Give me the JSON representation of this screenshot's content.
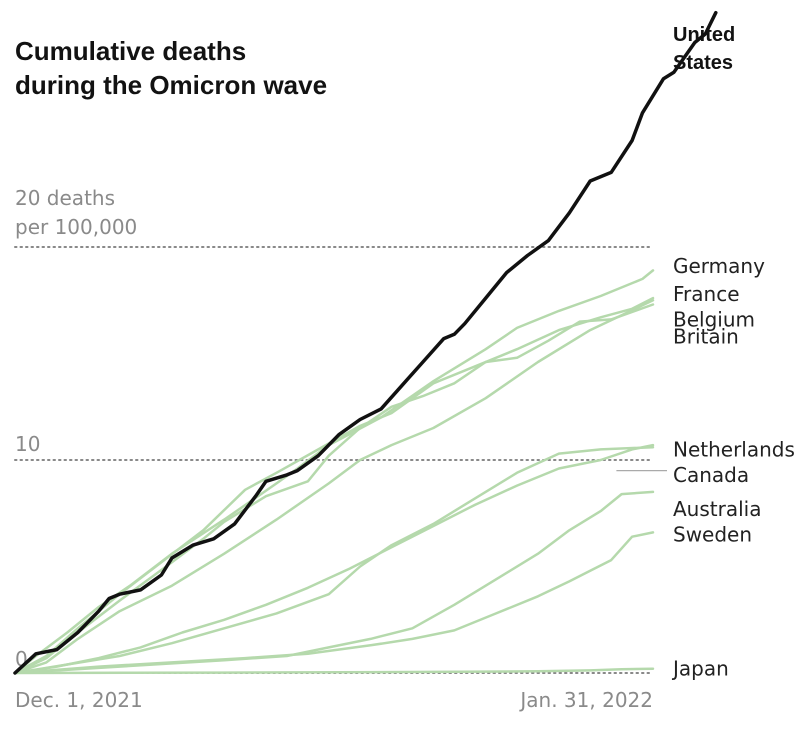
{
  "chart_data": {
    "type": "line",
    "title_lines": [
      "Cumulative deaths",
      "during the Omicron wave"
    ],
    "y_unit_lines": [
      "20 deaths",
      "per 100,000"
    ],
    "x_labels": [
      "Dec. 1, 2021",
      "Jan. 31, 2022"
    ],
    "x_range": [
      "2021-12-01",
      "2022-01-31"
    ],
    "y_ticks": [
      {
        "value": 0,
        "label": "0"
      },
      {
        "value": 10,
        "label": "10"
      },
      {
        "value": 20,
        "label": "20 deaths"
      }
    ],
    "ylim": [
      0,
      31
    ],
    "grid": "dotted horizontal at 0, 10, 20",
    "colors": {
      "highlight": "#111111",
      "other": "#b5d9ac",
      "guide": "#aaaaaa",
      "grid": "#888888"
    },
    "series": [
      {
        "name": "Germany",
        "label_lines": [
          "Germany"
        ],
        "label_value": 19.1,
        "points": [
          [
            0,
            0
          ],
          [
            2,
            0.8
          ],
          [
            5,
            1.9
          ],
          [
            8,
            3.1
          ],
          [
            11,
            4.1
          ],
          [
            15,
            5.6
          ],
          [
            20,
            7.2
          ],
          [
            25,
            8.9
          ],
          [
            27,
            9.6
          ],
          [
            30,
            10.7
          ],
          [
            35,
            12.0
          ],
          [
            40,
            13.7
          ],
          [
            45,
            15.2
          ],
          [
            48,
            16.2
          ],
          [
            52,
            17.0
          ],
          [
            56,
            17.7
          ],
          [
            60,
            18.5
          ],
          [
            61,
            18.9
          ]
        ]
      },
      {
        "name": "France",
        "label_lines": [
          "France"
        ],
        "label_value": 17.8,
        "points": [
          [
            0,
            0
          ],
          [
            3,
            0.5
          ],
          [
            6,
            1.6
          ],
          [
            10,
            2.9
          ],
          [
            15,
            4.1
          ],
          [
            20,
            5.6
          ],
          [
            25,
            7.2
          ],
          [
            30,
            8.9
          ],
          [
            33,
            10.0
          ],
          [
            36,
            10.7
          ],
          [
            40,
            11.5
          ],
          [
            45,
            12.9
          ],
          [
            50,
            14.6
          ],
          [
            55,
            16.1
          ],
          [
            58,
            16.8
          ],
          [
            61,
            17.5
          ]
        ]
      },
      {
        "name": "Belgium",
        "label_lines": [
          "Belgium"
        ],
        "label_value": 16.6,
        "points": [
          [
            0,
            0
          ],
          [
            3,
            0.7
          ],
          [
            6,
            1.9
          ],
          [
            10,
            3.4
          ],
          [
            15,
            5.2
          ],
          [
            18,
            6.3
          ],
          [
            20,
            7.1
          ],
          [
            24,
            8.3
          ],
          [
            28,
            9.0
          ],
          [
            30,
            10.2
          ],
          [
            33,
            11.5
          ],
          [
            36,
            12.5
          ],
          [
            39,
            13.0
          ],
          [
            42,
            13.6
          ],
          [
            45,
            14.6
          ],
          [
            48,
            14.8
          ],
          [
            51,
            15.6
          ],
          [
            54,
            16.5
          ],
          [
            57,
            16.6
          ],
          [
            61,
            17.3
          ]
        ]
      },
      {
        "name": "Britain",
        "label_lines": [
          "Britain"
        ],
        "label_value": 15.8,
        "points": [
          [
            0,
            0
          ],
          [
            3,
            0.8
          ],
          [
            6,
            2.1
          ],
          [
            10,
            3.7
          ],
          [
            14,
            5.2
          ],
          [
            18,
            6.7
          ],
          [
            22,
            8.6
          ],
          [
            25,
            9.4
          ],
          [
            29,
            10.5
          ],
          [
            33,
            11.6
          ],
          [
            36,
            12.2
          ],
          [
            40,
            13.6
          ],
          [
            44,
            14.4
          ],
          [
            48,
            15.2
          ],
          [
            52,
            16.1
          ],
          [
            56,
            16.7
          ],
          [
            59,
            17.1
          ],
          [
            61,
            17.6
          ]
        ]
      },
      {
        "name": "Netherlands",
        "label_lines": [
          "Netherlands"
        ],
        "label_value": 10.5,
        "points": [
          [
            0,
            0
          ],
          [
            5,
            0.4
          ],
          [
            10,
            0.8
          ],
          [
            15,
            1.4
          ],
          [
            20,
            2.1
          ],
          [
            25,
            2.8
          ],
          [
            30,
            3.7
          ],
          [
            33,
            5.0
          ],
          [
            36,
            6.0
          ],
          [
            40,
            7.0
          ],
          [
            44,
            8.2
          ],
          [
            48,
            9.4
          ],
          [
            52,
            10.3
          ],
          [
            56,
            10.5
          ],
          [
            61,
            10.6
          ]
        ]
      },
      {
        "name": "Canada",
        "label_lines": [
          "Canada"
        ],
        "label_value": 9.3,
        "guide_from_x": 57.5,
        "guide_value": 9.5,
        "points": [
          [
            0,
            0
          ],
          [
            4,
            0.3
          ],
          [
            8,
            0.7
          ],
          [
            12,
            1.2
          ],
          [
            16,
            1.9
          ],
          [
            20,
            2.5
          ],
          [
            24,
            3.2
          ],
          [
            28,
            4.0
          ],
          [
            32,
            4.9
          ],
          [
            36,
            5.9
          ],
          [
            40,
            6.9
          ],
          [
            44,
            7.9
          ],
          [
            48,
            8.8
          ],
          [
            52,
            9.6
          ],
          [
            56,
            10.0
          ],
          [
            59,
            10.5
          ],
          [
            61,
            10.7
          ]
        ]
      },
      {
        "name": "Australia",
        "label_lines": [
          "Australia"
        ],
        "label_value": 7.7,
        "points": [
          [
            0,
            0
          ],
          [
            10,
            0.3
          ],
          [
            20,
            0.6
          ],
          [
            26,
            0.8
          ],
          [
            30,
            1.2
          ],
          [
            34,
            1.6
          ],
          [
            38,
            2.1
          ],
          [
            42,
            3.2
          ],
          [
            46,
            4.4
          ],
          [
            50,
            5.6
          ],
          [
            53,
            6.7
          ],
          [
            56,
            7.6
          ],
          [
            58,
            8.4
          ],
          [
            61,
            8.5
          ]
        ]
      },
      {
        "name": "Sweden",
        "label_lines": [
          "Sweden"
        ],
        "label_value": 6.5,
        "points": [
          [
            0,
            0
          ],
          [
            8,
            0.3
          ],
          [
            15,
            0.5
          ],
          [
            22,
            0.7
          ],
          [
            28,
            0.9
          ],
          [
            34,
            1.3
          ],
          [
            38,
            1.6
          ],
          [
            42,
            2.0
          ],
          [
            46,
            2.8
          ],
          [
            50,
            3.6
          ],
          [
            53,
            4.3
          ],
          [
            55,
            4.8
          ],
          [
            57,
            5.3
          ],
          [
            59,
            6.4
          ],
          [
            61,
            6.6
          ]
        ]
      },
      {
        "name": "Japan",
        "label_lines": [
          "Japan"
        ],
        "label_value": 0.2,
        "points": [
          [
            0,
            0
          ],
          [
            20,
            0.02
          ],
          [
            40,
            0.05
          ],
          [
            50,
            0.08
          ],
          [
            55,
            0.12
          ],
          [
            58,
            0.18
          ],
          [
            61,
            0.2
          ]
        ]
      },
      {
        "name": "United States",
        "label_lines": [
          "United",
          "States"
        ],
        "label_value": 30.0,
        "highlight": true,
        "points": [
          [
            0,
            0
          ],
          [
            2,
            0.9
          ],
          [
            4,
            1.1
          ],
          [
            6,
            1.9
          ],
          [
            8,
            2.9
          ],
          [
            9,
            3.5
          ],
          [
            10,
            3.7
          ],
          [
            12,
            3.9
          ],
          [
            14,
            4.6
          ],
          [
            15,
            5.4
          ],
          [
            17,
            6.0
          ],
          [
            19,
            6.3
          ],
          [
            21,
            7.0
          ],
          [
            23,
            8.3
          ],
          [
            24,
            9.0
          ],
          [
            26,
            9.3
          ],
          [
            27,
            9.5
          ],
          [
            29,
            10.2
          ],
          [
            31,
            11.2
          ],
          [
            33,
            11.9
          ],
          [
            35,
            12.4
          ],
          [
            37,
            13.5
          ],
          [
            39,
            14.6
          ],
          [
            41,
            15.7
          ],
          [
            42,
            15.9
          ],
          [
            43,
            16.4
          ],
          [
            45,
            17.6
          ],
          [
            47,
            18.8
          ],
          [
            49,
            19.6
          ],
          [
            51,
            20.3
          ],
          [
            53,
            21.6
          ],
          [
            55,
            23.1
          ],
          [
            57,
            23.5
          ],
          [
            59,
            25.0
          ],
          [
            60,
            26.3
          ],
          [
            62,
            27.9
          ],
          [
            63,
            28.2
          ],
          [
            65,
            29.6
          ],
          [
            66,
            30.0
          ],
          [
            67,
            31.0
          ]
        ]
      }
    ]
  }
}
